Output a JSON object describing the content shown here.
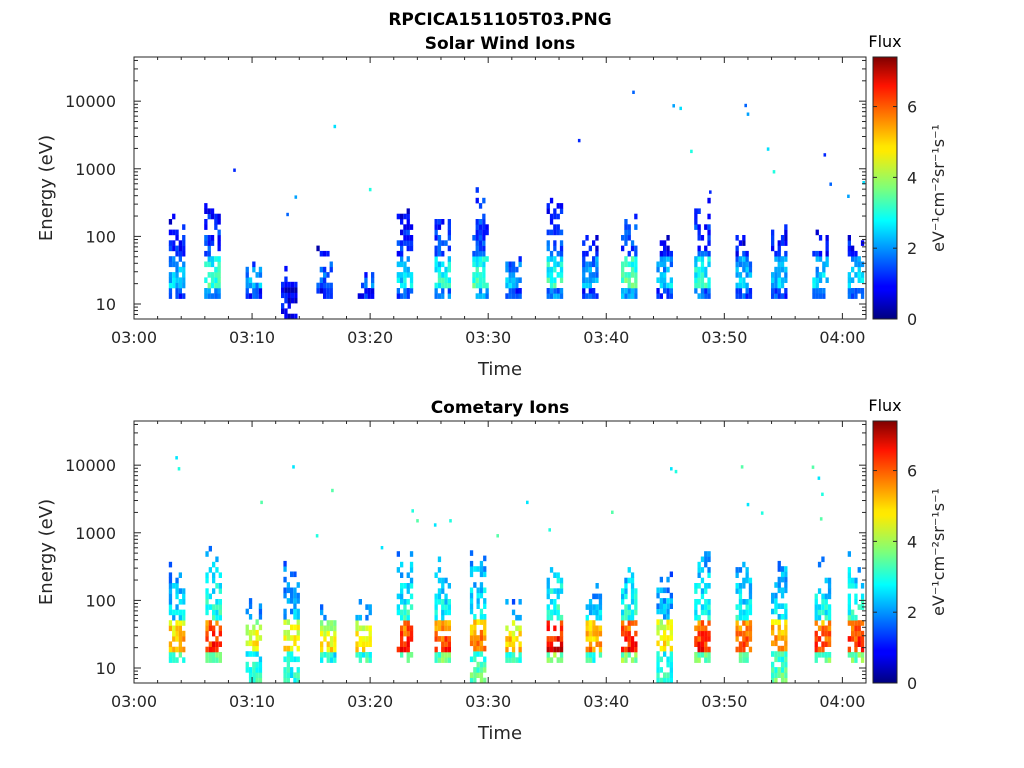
{
  "figure_title": "RPCICA151105T03.PNG",
  "panels": [
    {
      "title": "Solar Wind Ions",
      "xlabel": "Time",
      "ylabel": "Energy (eV)",
      "colorbar_title": "Flux",
      "colorbar_unit": "eV⁻¹cm⁻²sr⁻¹s⁻¹",
      "colorbar_ticks": [
        "0",
        "2",
        "4",
        "6"
      ]
    },
    {
      "title": "Cometary Ions",
      "xlabel": "Time",
      "ylabel": "Energy (eV)",
      "colorbar_title": "Flux",
      "colorbar_unit": "eV⁻¹cm⁻²sr⁻¹s⁻¹",
      "colorbar_ticks": [
        "0",
        "2",
        "4",
        "6"
      ]
    }
  ],
  "chart_data": [
    {
      "type": "heatmap",
      "title": "Solar Wind Ions",
      "xlabel": "Time",
      "ylabel": "Energy (eV)",
      "x_range": [
        "03:00",
        "04:02"
      ],
      "y_scale": "log",
      "y_range": [
        6,
        45000
      ],
      "x_ticks": [
        "03:00",
        "03:10",
        "03:20",
        "03:30",
        "03:40",
        "03:50",
        "04:00"
      ],
      "y_ticks": [
        10,
        100,
        1000,
        10000
      ],
      "y_tick_labels": [
        "10",
        "100",
        "1000",
        "10000"
      ],
      "colorbar": {
        "label": "Flux",
        "unit": "eV-1cm-2sr-1s-1",
        "range": [
          0,
          7.4
        ],
        "ticks": [
          0,
          2,
          4,
          6
        ],
        "colormap": "jet"
      },
      "grid": false,
      "bursts": [
        {
          "t": 3.5,
          "e0": 12,
          "e1": 220,
          "v": 2.6
        },
        {
          "t": 6.5,
          "e0": 12,
          "e1": 420,
          "v": 3.3
        },
        {
          "t": 10.0,
          "e0": 12,
          "e1": 60,
          "v": 2.4
        },
        {
          "t": 13.0,
          "e0": 6,
          "e1": 40,
          "v": 1.6
        },
        {
          "t": 16.0,
          "e0": 12,
          "e1": 90,
          "v": 1.8
        },
        {
          "t": 19.5,
          "e0": 12,
          "e1": 40,
          "v": 2.0
        },
        {
          "t": 22.8,
          "e0": 12,
          "e1": 320,
          "v": 2.8
        },
        {
          "t": 26.0,
          "e0": 12,
          "e1": 270,
          "v": 3.2
        },
        {
          "t": 29.2,
          "e0": 12,
          "e1": 550,
          "v": 3.4
        },
        {
          "t": 32.0,
          "e0": 12,
          "e1": 55,
          "v": 2.5
        },
        {
          "t": 35.5,
          "e0": 12,
          "e1": 450,
          "v": 3.3
        },
        {
          "t": 38.5,
          "e0": 12,
          "e1": 120,
          "v": 2.4
        },
        {
          "t": 41.8,
          "e0": 12,
          "e1": 220,
          "v": 3.7
        },
        {
          "t": 44.8,
          "e0": 12,
          "e1": 110,
          "v": 2.6
        },
        {
          "t": 48.0,
          "e0": 12,
          "e1": 420,
          "v": 3.1
        },
        {
          "t": 51.5,
          "e0": 12,
          "e1": 120,
          "v": 2.6
        },
        {
          "t": 54.5,
          "e0": 12,
          "e1": 200,
          "v": 2.5
        },
        {
          "t": 58.0,
          "e0": 12,
          "e1": 120,
          "v": 2.7
        },
        {
          "t": 61.0,
          "e0": 12,
          "e1": 120,
          "v": 2.9
        }
      ],
      "isolated_points": [
        {
          "t": 8.5,
          "e": 950
        },
        {
          "t": 13.0,
          "e": 210
        },
        {
          "t": 13.7,
          "e": 380
        },
        {
          "t": 17.0,
          "e": 4200
        },
        {
          "t": 20.0,
          "e": 490
        },
        {
          "t": 37.7,
          "e": 2600
        },
        {
          "t": 42.3,
          "e": 13500
        },
        {
          "t": 45.7,
          "e": 8500
        },
        {
          "t": 46.3,
          "e": 7800
        },
        {
          "t": 47.2,
          "e": 1800
        },
        {
          "t": 48.8,
          "e": 450
        },
        {
          "t": 51.8,
          "e": 8600
        },
        {
          "t": 52.0,
          "e": 6400
        },
        {
          "t": 53.7,
          "e": 1950
        },
        {
          "t": 54.2,
          "e": 900
        },
        {
          "t": 58.5,
          "e": 1600
        },
        {
          "t": 59.0,
          "e": 590
        },
        {
          "t": 60.5,
          "e": 390
        },
        {
          "t": 61.8,
          "e": 620
        }
      ]
    },
    {
      "type": "heatmap",
      "title": "Cometary Ions",
      "xlabel": "Time",
      "ylabel": "Energy (eV)",
      "x_range": [
        "03:00",
        "04:02"
      ],
      "y_scale": "log",
      "y_range": [
        6,
        45000
      ],
      "x_ticks": [
        "03:00",
        "03:10",
        "03:20",
        "03:30",
        "03:40",
        "03:50",
        "04:00"
      ],
      "y_ticks": [
        10,
        100,
        1000,
        10000
      ],
      "y_tick_labels": [
        "10",
        "100",
        "1000",
        "10000"
      ],
      "colorbar": {
        "label": "Flux",
        "unit": "eV-1cm-2sr-1s-1",
        "range": [
          0,
          7.4
        ],
        "ticks": [
          0,
          2,
          4,
          6
        ],
        "colormap": "jet"
      },
      "grid": false,
      "bursts": [
        {
          "t": 3.5,
          "e0": 12,
          "e1": 380,
          "v": 5.6
        },
        {
          "t": 6.6,
          "e0": 12,
          "e1": 700,
          "v": 6.6
        },
        {
          "t": 10.0,
          "e0": 6,
          "e1": 100,
          "v": 5.8
        },
        {
          "t": 13.2,
          "e0": 6,
          "e1": 400,
          "v": 5.4
        },
        {
          "t": 16.3,
          "e0": 12,
          "e1": 90,
          "v": 5.3
        },
        {
          "t": 19.3,
          "e0": 12,
          "e1": 120,
          "v": 5.6
        },
        {
          "t": 22.8,
          "e0": 12,
          "e1": 480,
          "v": 6.6
        },
        {
          "t": 26.0,
          "e0": 12,
          "e1": 450,
          "v": 6.4
        },
        {
          "t": 29.0,
          "e0": 6,
          "e1": 650,
          "v": 6.3
        },
        {
          "t": 32.0,
          "e0": 12,
          "e1": 110,
          "v": 5.8
        },
        {
          "t": 35.5,
          "e0": 12,
          "e1": 500,
          "v": 6.9
        },
        {
          "t": 38.8,
          "e0": 12,
          "e1": 230,
          "v": 5.8
        },
        {
          "t": 41.8,
          "e0": 12,
          "e1": 420,
          "v": 6.7
        },
        {
          "t": 44.8,
          "e0": 6,
          "e1": 320,
          "v": 5.6
        },
        {
          "t": 48.0,
          "e0": 12,
          "e1": 580,
          "v": 6.6
        },
        {
          "t": 51.5,
          "e0": 12,
          "e1": 500,
          "v": 6.2
        },
        {
          "t": 54.5,
          "e0": 6,
          "e1": 420,
          "v": 6.2
        },
        {
          "t": 58.2,
          "e0": 12,
          "e1": 480,
          "v": 6.4
        },
        {
          "t": 61.0,
          "e0": 12,
          "e1": 550,
          "v": 6.5
        }
      ],
      "isolated_points": [
        {
          "t": 3.6,
          "e": 12800
        },
        {
          "t": 3.8,
          "e": 8800
        },
        {
          "t": 10.8,
          "e": 2800
        },
        {
          "t": 13.5,
          "e": 9400
        },
        {
          "t": 15.5,
          "e": 900
        },
        {
          "t": 16.8,
          "e": 4200
        },
        {
          "t": 21.0,
          "e": 600
        },
        {
          "t": 23.6,
          "e": 2100
        },
        {
          "t": 24.0,
          "e": 1500
        },
        {
          "t": 25.5,
          "e": 1300
        },
        {
          "t": 26.8,
          "e": 1500
        },
        {
          "t": 30.8,
          "e": 900
        },
        {
          "t": 33.3,
          "e": 2800
        },
        {
          "t": 35.2,
          "e": 1100
        },
        {
          "t": 40.5,
          "e": 2000
        },
        {
          "t": 45.5,
          "e": 8800
        },
        {
          "t": 45.9,
          "e": 8000
        },
        {
          "t": 51.5,
          "e": 9400
        },
        {
          "t": 52.0,
          "e": 2600
        },
        {
          "t": 53.2,
          "e": 1950
        },
        {
          "t": 57.5,
          "e": 9300
        },
        {
          "t": 58.0,
          "e": 6400
        },
        {
          "t": 58.3,
          "e": 3700
        },
        {
          "t": 58.2,
          "e": 1600
        }
      ]
    }
  ]
}
